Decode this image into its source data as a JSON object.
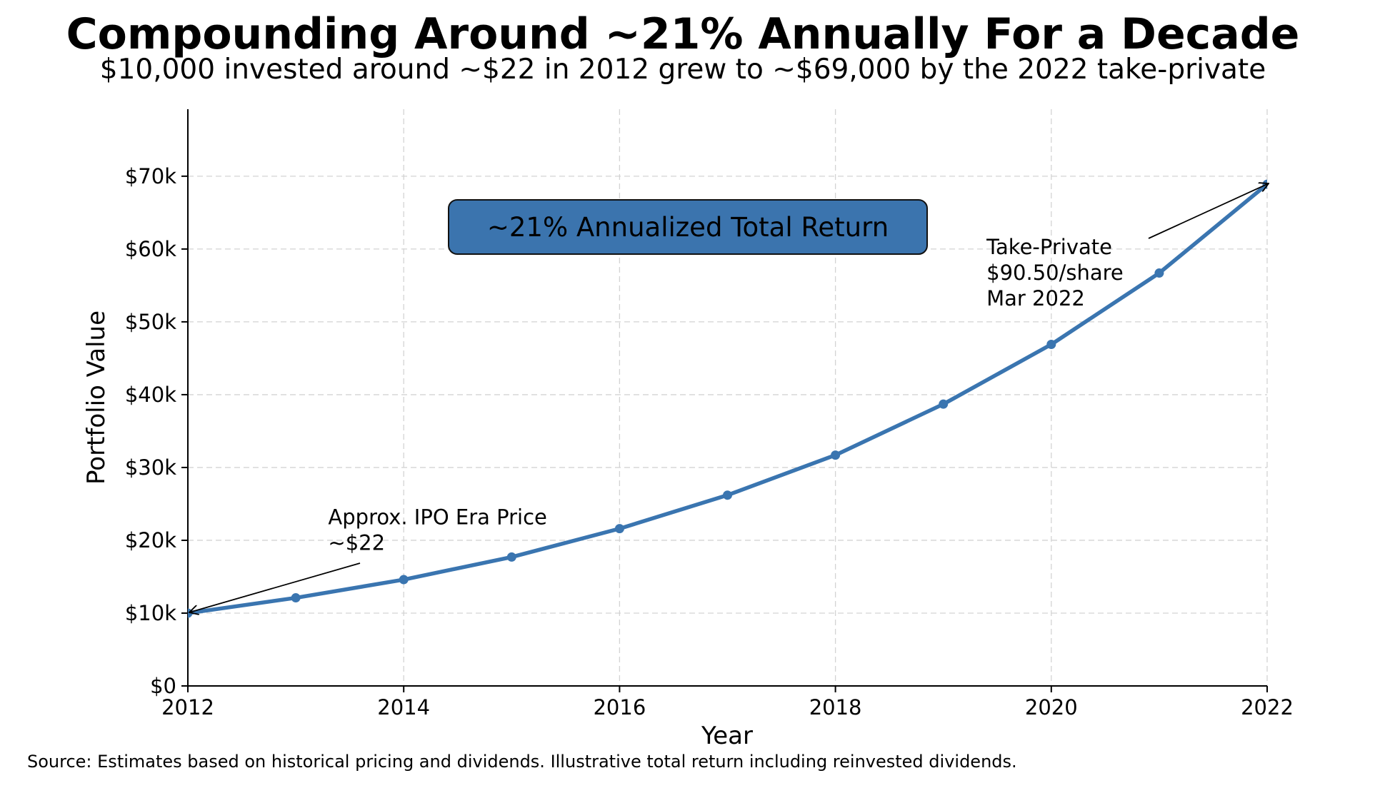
{
  "chart_data": {
    "type": "line",
    "title": "Compounding Around ~21% Annually For a Decade",
    "subtitle": "$10,000 invested around ~$22 in 2012 grew to ~$69,000 by the 2022 take-private",
    "xlabel": "Year",
    "ylabel": "Portfolio Value",
    "x": [
      2012,
      2013,
      2014,
      2015,
      2016,
      2017,
      2018,
      2019,
      2020,
      2021,
      2022
    ],
    "series": [
      {
        "name": "Portfolio Value",
        "color": "#3a75b0",
        "values": [
          10000,
          12100,
          14600,
          17700,
          21600,
          26200,
          31700,
          38700,
          46900,
          56700,
          68900
        ]
      }
    ],
    "xlim": [
      2012,
      2022
    ],
    "ylim": [
      0,
      79200
    ],
    "xticks": [
      2012,
      2014,
      2016,
      2018,
      2020,
      2022
    ],
    "xtick_labels": [
      "2012",
      "2014",
      "2016",
      "2018",
      "2020",
      "2022"
    ],
    "yticks": [
      0,
      10000,
      20000,
      30000,
      40000,
      50000,
      60000,
      70000
    ],
    "ytick_labels": [
      "$0",
      "$10k",
      "$20k",
      "$30k",
      "$40k",
      "$50k",
      "$60k",
      "$70k"
    ],
    "grid": true,
    "annotations": [
      {
        "name": "ipo-annotation",
        "lines": [
          "Approx. IPO Era Price",
          "~$22"
        ],
        "target": {
          "x": 2012,
          "y": 10000
        },
        "text_pos": {
          "x": 2013.3,
          "y": 22200
        }
      },
      {
        "name": "take-private-annotation",
        "lines": [
          "Take-Private",
          "$90.50/share",
          "Mar 2022"
        ],
        "target": {
          "x": 2022,
          "y": 68900
        },
        "text_pos": {
          "x": 2019.4,
          "y": 59300
        }
      }
    ],
    "callout_box": {
      "text": "~21% Annualized Total Return",
      "fill": "#3b74ae"
    },
    "footnote": "Source: Estimates based on historical pricing and dividends. Illustrative total return including reinvested dividends."
  }
}
